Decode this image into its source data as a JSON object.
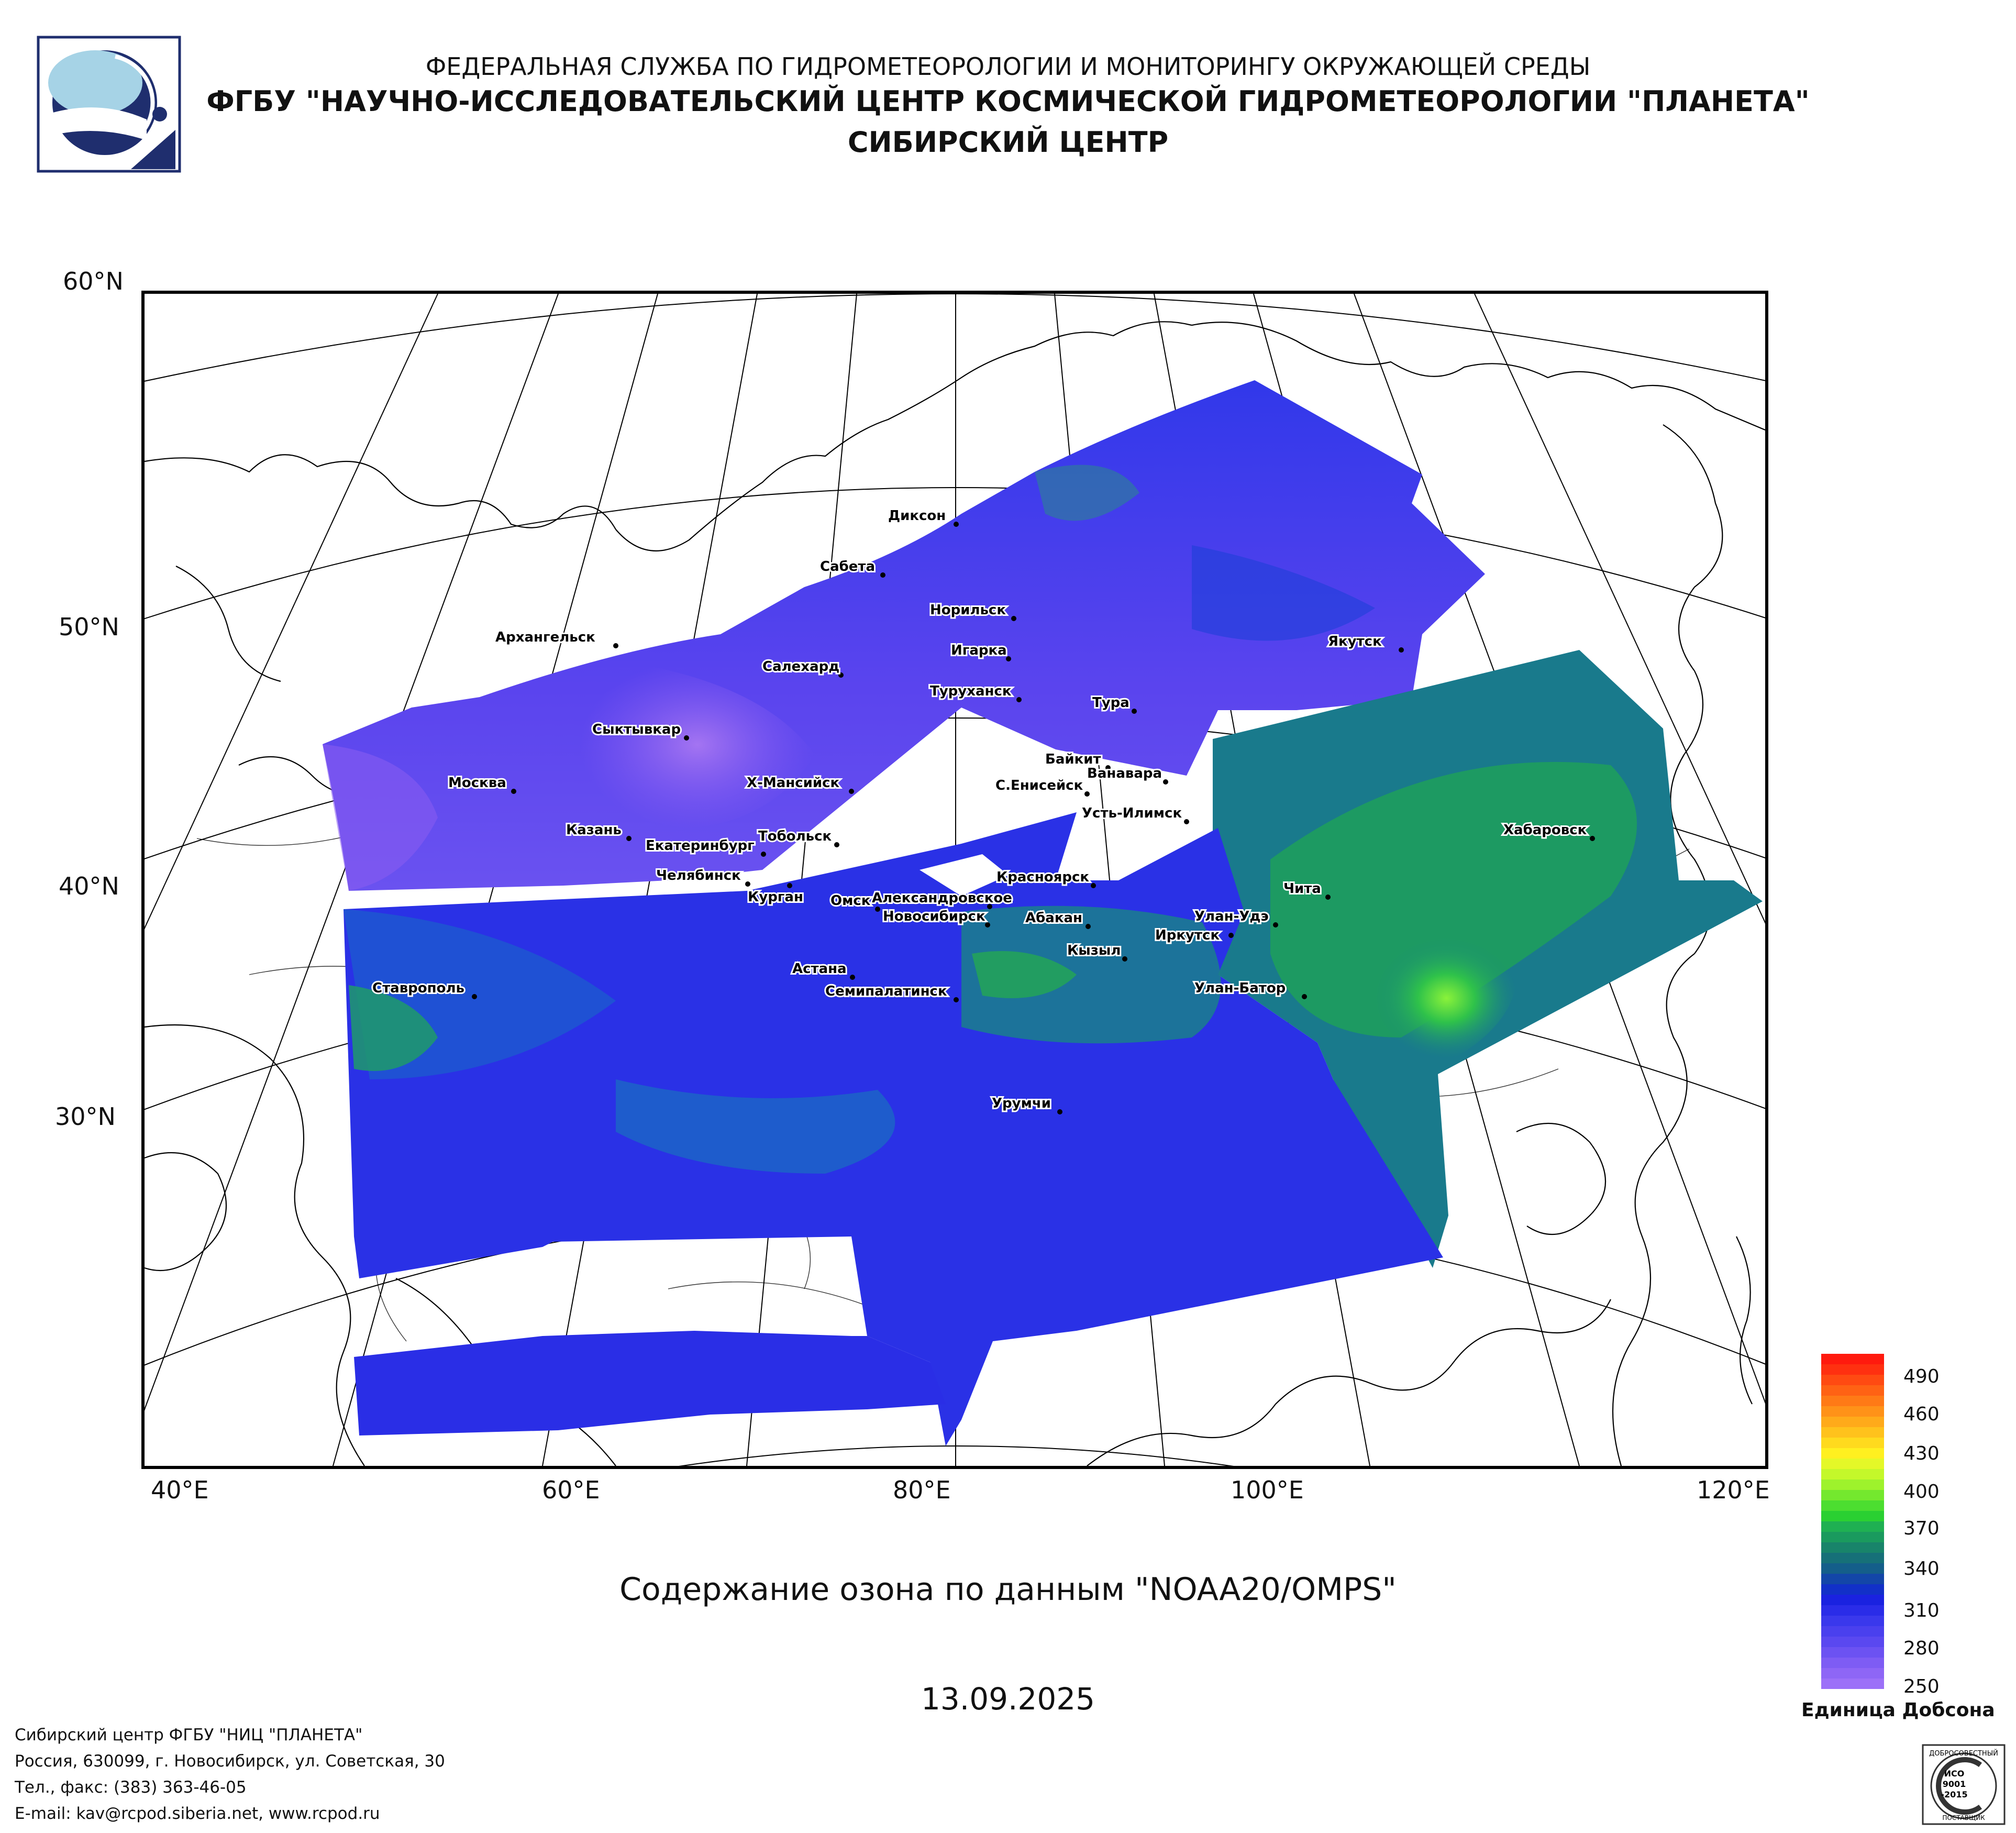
{
  "header": {
    "line1": "ФЕДЕРАЛЬНАЯ СЛУЖБА ПО ГИДРОМЕТЕОРОЛОГИИ И МОНИТОРИНГУ ОКРУЖАЮЩЕЙ СРЕДЫ",
    "line2": "ФГБУ \"НАУЧНО-ИССЛЕДОВАТЕЛЬСКИЙ ЦЕНТР КОСМИЧЕСКОЙ ГИДРОМЕТЕОРОЛОГИИ \"ПЛАНЕТА\"",
    "line3": "СИБИРСКИЙ ЦЕНТР"
  },
  "map": {
    "lat_labels": [
      "60°N",
      "50°N",
      "40°N",
      "30°N"
    ],
    "lon_labels": [
      "40°E",
      "60°E",
      "80°E",
      "100°E",
      "120°E"
    ],
    "cities": [
      "Диксон",
      "Сабета",
      "Норильск",
      "Игарка",
      "Туруханск",
      "Салехард",
      "Архангельск",
      "Якутск",
      "Тура",
      "Сыктывкар",
      "Байкит",
      "Ванавара",
      "Москва",
      "Х-Мансийск",
      "С.Енисейск",
      "Усть-Илимск",
      "Казань",
      "Тобольск",
      "Екатеринбург",
      "Хабаровск",
      "Челябинск",
      "Курган",
      "Александровское",
      "Красноярск",
      "Чита",
      "Омск",
      "Новосибирск",
      "Абакан",
      "Улан-Удэ",
      "Иркутск",
      "Кызыл",
      "Ставрополь",
      "Астана",
      "Семипалатинск",
      "Улан-Батор",
      "Урумчи"
    ],
    "colors": {
      "low": "#9b6cf0",
      "mid": "#2a2ee8",
      "teal": "#1a7f8c",
      "green": "#21b04a",
      "bright": "#5fe830"
    }
  },
  "caption": "Содержание озона по данным \"NOAA20/OMPS\"",
  "date": "13.09.2025",
  "legend": {
    "ticks": [
      "490",
      "460",
      "430",
      "400",
      "370",
      "340",
      "310",
      "280",
      "250"
    ],
    "unit": "Единица Добсона"
  },
  "footer": {
    "line1": "Сибирский центр ФГБУ \"НИЦ \"ПЛАНЕТА\"",
    "line2": "Россия, 630099, г. Новосибирск, ул. Советская, 30",
    "line3": "Тел., факс: (383) 363-46-05",
    "line4": "E-mail: kav@rcpod.siberia.net, www.rcpod.ru"
  },
  "iso_badge": [
    "ДОБРОСОВЕСТНЫЙ",
    "ИСО",
    "9001",
    "-2015",
    "ПОСТАВЩИК"
  ]
}
